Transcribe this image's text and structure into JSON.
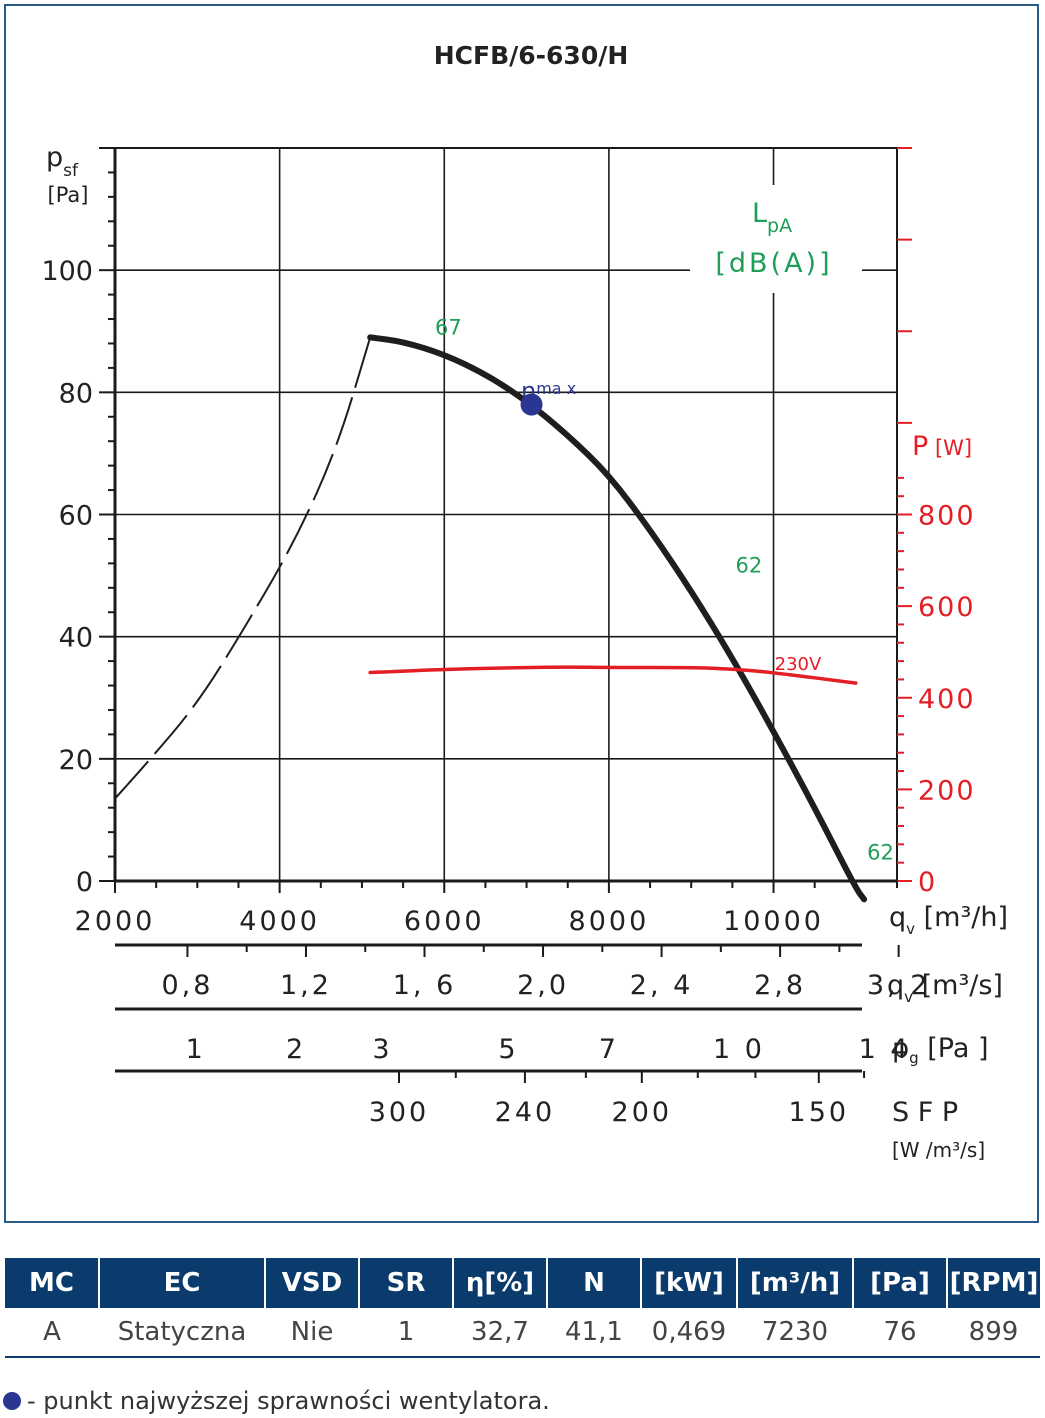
{
  "chart_data": {
    "type": "line",
    "title": "HCFB/6-630/H",
    "left_axis": {
      "label": "p",
      "label_sub": "sf",
      "unit": "[Pa]",
      "ylim": [
        0,
        120
      ],
      "ticks": [
        0,
        20,
        40,
        60,
        80,
        100
      ]
    },
    "right_axis": {
      "label": "P",
      "unit": "[W]",
      "ylim": [
        0,
        1600
      ],
      "ticks": [
        0,
        200,
        400,
        600,
        800
      ],
      "color": "#e31e24"
    },
    "x_axis": {
      "label": "q",
      "label_sub": "v",
      "unit": "[m³/h]",
      "xlim": [
        2000,
        11500
      ],
      "ticks": [
        2000,
        4000,
        6000,
        8000,
        10000
      ]
    },
    "secondary_scales": [
      {
        "name": "q_v m3/s",
        "label": "q",
        "label_sub": "v",
        "unit": "[m³/s]",
        "ticks": [
          {
            "label": "0,8",
            "value": 0.8
          },
          {
            "label": "1,2",
            "value": 1.2
          },
          {
            "label": "1, 6",
            "value": 1.6
          },
          {
            "label": "2,0",
            "value": 2.0
          },
          {
            "label": "2, 4",
            "value": 2.4
          },
          {
            "label": "2,8",
            "value": 2.8
          },
          {
            "label": "3, 2",
            "value": 3.2
          }
        ]
      },
      {
        "name": "p_g",
        "label": "p",
        "label_sub": "g",
        "unit": "[Pa ]",
        "ticks": [
          {
            "label": "1",
            "qv": 2980
          },
          {
            "label": "2",
            "qv": 4200
          },
          {
            "label": "3",
            "qv": 5250
          },
          {
            "label": "5",
            "qv": 6780
          },
          {
            "label": "7",
            "qv": 8000
          },
          {
            "label": "1 0",
            "qv": 9580
          },
          {
            "label": "1 4",
            "qv": 11350
          }
        ]
      },
      {
        "name": "SFP",
        "label": "S F P",
        "unit": "[W /m³/s]",
        "ticks": [
          {
            "label": "300",
            "qv": 5450
          },
          {
            "label": "240",
            "qv": 6980
          },
          {
            "label": "200",
            "qv": 8400
          },
          {
            "label": "150",
            "qv": 10550
          }
        ]
      }
    ],
    "series": [
      {
        "name": "pressure",
        "color": "#1e1e1e",
        "x": [
          5100,
          5500,
          6000,
          6500,
          7000,
          7500,
          8000,
          8500,
          9000,
          9500,
          10000,
          10500,
          11000,
          11100
        ],
        "y": [
          89,
          88.3,
          86.2,
          83,
          78.6,
          73,
          66.5,
          57.5,
          47.5,
          36.5,
          24.5,
          12,
          -1.2,
          -3
        ]
      },
      {
        "name": "pressure-unstable",
        "style": "dashed",
        "color": "#1e1e1e",
        "x": [
          2000,
          2400,
          3000,
          3600,
          4200,
          4700,
          5100
        ],
        "y": [
          13.5,
          19.5,
          29,
          42,
          56,
          71,
          89
        ]
      },
      {
        "name": "230V",
        "color": "#e31e24",
        "axis": "right",
        "x": [
          5100,
          6000,
          7000,
          7500,
          8000,
          9000,
          9500,
          10000,
          11000
        ],
        "y": [
          455,
          462,
          466,
          467,
          466,
          466,
          463,
          455,
          432
        ]
      }
    ],
    "series_labels": {
      "power": "230V"
    },
    "noise_labels": [
      {
        "text": "67",
        "x": 6050,
        "y": 89.5
      },
      {
        "text": "62",
        "x": 9700,
        "y": 50.5
      },
      {
        "text": "62",
        "x": 11300,
        "y": 3.5
      }
    ],
    "lpa_label": {
      "main": "L",
      "sub": "pA",
      "unit": "[dB(A)]"
    },
    "eta_max": {
      "x": 7060,
      "y": 78,
      "label": "η",
      "label_sub": "ma x"
    },
    "grid": true
  },
  "table": {
    "headers": [
      "MC",
      "EC",
      "VSD",
      "SR",
      "η[%]",
      "N",
      "[kW]",
      "[m³/h]",
      "[Pa]",
      "[RPM]"
    ],
    "rows": [
      [
        "A",
        "Statyczna",
        "Nie",
        "1",
        "32,7",
        "41,1",
        "0,469",
        "7230",
        "76",
        "899"
      ]
    ]
  },
  "legend_note": "- punkt najwyższej sprawności wentylatora.",
  "colors": {
    "frame": "#2a5a86",
    "header": "#0b3a6c",
    "noise": "#1f9e58",
    "power": "#e31e24",
    "eta": "#2b3592"
  }
}
